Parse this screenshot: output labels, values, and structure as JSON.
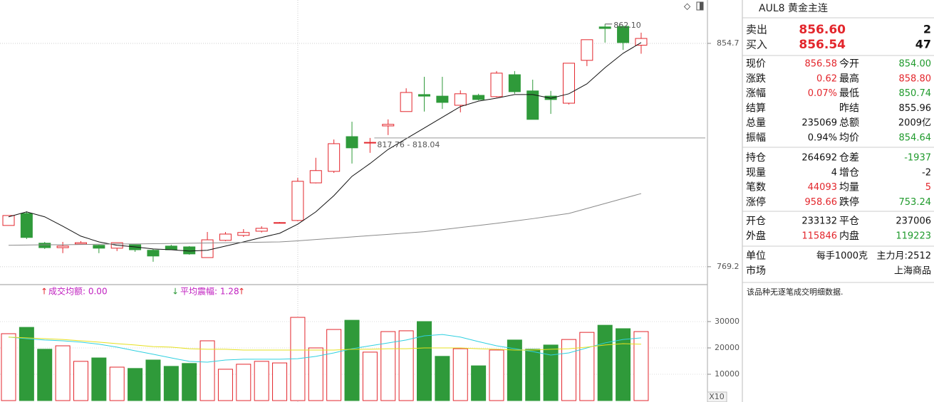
{
  "chart_data": [
    {
      "type": "candlestick",
      "open": [
        785.0,
        789.6,
        778.2,
        776.5,
        777.9,
        777.4,
        776.3,
        777.6,
        775.5,
        777.1,
        776.8,
        772.7,
        779.3,
        781.2,
        782.8,
        786.1,
        786.9,
        801.3,
        805.7,
        819.0,
        816.8,
        823.1,
        828.6,
        835.1,
        834.5,
        831.0,
        834.8,
        834.3,
        842.7,
        836.5,
        834.5,
        831.8,
        848.2,
        861.0,
        861.2,
        854.0
      ],
      "high": [
        788.8,
        790.4,
        778.7,
        778.7,
        779.0,
        777.6,
        778.4,
        777.6,
        776.0,
        777.6,
        777.1,
        782.5,
        782.5,
        783.6,
        784.7,
        786.3,
        803.2,
        810.9,
        817.9,
        824.7,
        818.5,
        825.6,
        837.5,
        841.9,
        841.9,
        836.7,
        835.4,
        844.1,
        844.1,
        840.8,
        836.5,
        847.1,
        856.1,
        862.1,
        861.2,
        858.8
      ],
      "low": [
        785.0,
        779.8,
        776.0,
        774.4,
        777.9,
        774.4,
        775.2,
        774.9,
        771.1,
        775.7,
        773.8,
        772.7,
        779.0,
        780.6,
        782.3,
        786.1,
        786.6,
        801.1,
        805.1,
        808.7,
        812.8,
        819.6,
        828.6,
        828.6,
        829.6,
        828.3,
        832.9,
        834.0,
        835.4,
        825.6,
        827.7,
        831.3,
        846.0,
        855.0,
        852.2,
        850.74
      ],
      "close": [
        788.8,
        780.4,
        776.5,
        777.1,
        778.4,
        776.3,
        778.4,
        775.7,
        773.3,
        775.7,
        774.1,
        779.5,
        781.7,
        782.3,
        783.9,
        786.1,
        801.9,
        806.0,
        816.3,
        814.7,
        816.8,
        823.7,
        835.9,
        834.5,
        832.1,
        835.4,
        833.2,
        843.3,
        836.2,
        825.6,
        833.2,
        847.1,
        856.1,
        860.4,
        855.0,
        856.58
      ],
      "lines": [
        {
          "color": "#111111",
          "values": [
            788.3,
            790.2,
            788.3,
            784.7,
            780.9,
            778.7,
            777.4,
            776.8,
            776.0,
            775.7,
            775.2,
            775.5,
            777.1,
            778.7,
            780.4,
            782.0,
            785.5,
            790.2,
            796.4,
            803.8,
            808.7,
            814.1,
            818.2,
            822.3,
            826.4,
            830.5,
            832.6,
            833.7,
            835.1,
            835.1,
            833.7,
            835.4,
            839.2,
            845.4,
            850.9,
            855.0
          ]
        },
        {
          "color": "#8a8a8a",
          "values": [
            777.4,
            777.5,
            777.6,
            777.6,
            777.7,
            777.8,
            777.9,
            777.9,
            778.0,
            778.1,
            778.2,
            778.3,
            778.4,
            778.5,
            778.6,
            778.7,
            779.1,
            779.6,
            780.1,
            780.6,
            781.1,
            781.6,
            782.1,
            782.6,
            783.4,
            784.2,
            785.0,
            785.8,
            786.7,
            787.6,
            788.6,
            789.6,
            791.5,
            793.4,
            795.3,
            797.2
          ]
        }
      ],
      "up_color": "#e3262c",
      "down_color": "#2f9a3a",
      "ylim": [
        762.9,
        871.3
      ],
      "yticks": [
        769.2,
        854.7
      ],
      "annotations": [
        "862.10",
        "817.76 - 818.04"
      ]
    },
    {
      "type": "bar",
      "values": [
        25400,
        27800,
        19500,
        20800,
        14900,
        16200,
        12700,
        12200,
        15400,
        13000,
        14100,
        22700,
        11900,
        13800,
        14900,
        14300,
        31600,
        20000,
        27000,
        30500,
        18400,
        26200,
        26500,
        30000,
        16800,
        19700,
        13200,
        19200,
        23000,
        19500,
        21100,
        23200,
        25900,
        28600,
        27300,
        26200
      ],
      "lines": [
        {
          "color": "#2fd0e0",
          "values": [
            24100,
            23500,
            23000,
            22700,
            22200,
            21400,
            20300,
            18900,
            17600,
            16200,
            14900,
            14600,
            15400,
            15700,
            15700,
            15700,
            15900,
            16800,
            18100,
            19700,
            20800,
            21900,
            23000,
            24600,
            25100,
            24100,
            22400,
            20800,
            19700,
            18600,
            17300,
            18100,
            20000,
            21900,
            23200,
            23800
          ]
        },
        {
          "color": "#e6e020",
          "values": [
            24100,
            23800,
            23500,
            23200,
            22700,
            22200,
            21600,
            21100,
            20500,
            20300,
            19700,
            19500,
            19500,
            19200,
            19200,
            19200,
            19200,
            19200,
            19200,
            19500,
            19500,
            19700,
            19700,
            20000,
            20000,
            20000,
            19700,
            19500,
            19200,
            19200,
            19500,
            19700,
            20300,
            21100,
            21600,
            21400
          ]
        }
      ],
      "ylim": [
        0,
        43500
      ],
      "yticks": [
        10000,
        20000,
        30000
      ],
      "indicators": [
        {
          "text": "↑",
          "color": "#e3262c"
        },
        {
          "text": "成交均额: 0.00",
          "color": "#c020c0"
        },
        {
          "text": "↓",
          "color": "#2f9a3a"
        },
        {
          "text": "平均震幅: 1.28",
          "color": "#c020c0"
        },
        {
          "text": "↑",
          "color": "#e3262c"
        }
      ],
      "scale_label": "X10"
    }
  ],
  "panel": {
    "title": "AUL8 黄金主连",
    "bid_ask": [
      {
        "label": "卖出",
        "price": "856.60",
        "qty": "2"
      },
      {
        "label": "买入",
        "price": "856.54",
        "qty": "47"
      }
    ],
    "groups": [
      [
        {
          "cells": [
            "现价",
            "856.58",
            "今开",
            "854.00"
          ],
          "colors": [
            "#111",
            "#e3262c",
            "#111",
            "#1f9a2c"
          ]
        },
        {
          "cells": [
            "涨跌",
            "0.62",
            "最高",
            "858.80"
          ],
          "colors": [
            "#111",
            "#e3262c",
            "#111",
            "#e3262c"
          ]
        },
        {
          "cells": [
            "涨幅",
            "0.07%",
            "最低",
            "850.74"
          ],
          "colors": [
            "#111",
            "#e3262c",
            "#111",
            "#1f9a2c"
          ]
        },
        {
          "cells": [
            "结算",
            null,
            "昨结",
            "855.96"
          ],
          "colors": [
            "#111",
            "#111",
            "#111",
            "#111"
          ]
        },
        {
          "cells": [
            "总量",
            "235069",
            "总额",
            "2009亿"
          ],
          "colors": [
            "#111",
            "#111",
            "#111",
            "#111"
          ]
        },
        {
          "cells": [
            "振幅",
            "0.94%",
            "均价",
            "854.64"
          ],
          "colors": [
            "#111",
            "#111",
            "#111",
            "#1f9a2c"
          ]
        }
      ],
      [
        {
          "cells": [
            "持仓",
            "264692",
            "仓差",
            "-1937"
          ],
          "colors": [
            "#111",
            "#111",
            "#111",
            "#1f9a2c"
          ]
        },
        {
          "cells": [
            "现量",
            "4",
            "增仓",
            "-2"
          ],
          "colors": [
            "#111",
            "#111",
            "#111",
            "#111"
          ]
        },
        {
          "cells": [
            "笔数",
            "44093",
            "均量",
            "5"
          ],
          "colors": [
            "#111",
            "#e3262c",
            "#111",
            "#e3262c"
          ]
        },
        {
          "cells": [
            "涨停",
            "958.66",
            "跌停",
            "753.24"
          ],
          "colors": [
            "#111",
            "#e3262c",
            "#111",
            "#1f9a2c"
          ]
        }
      ],
      [
        {
          "cells": [
            "开仓",
            "233132",
            "平仓",
            "237006"
          ],
          "colors": [
            "#111",
            "#111",
            "#111",
            "#111"
          ]
        },
        {
          "cells": [
            "外盘",
            "115846",
            "内盘",
            "119223"
          ],
          "colors": [
            "#111",
            "#e3262c",
            "#111",
            "#1f9a2c"
          ]
        }
      ],
      [
        {
          "cells": [
            "单位",
            "每手1000克",
            null,
            "主力月:2512"
          ],
          "colors": [
            "#111",
            "#111",
            "#111",
            "#111"
          ]
        },
        {
          "cells": [
            "市场",
            null,
            null,
            "上海商品"
          ],
          "colors": [
            "#111",
            "#111",
            "#111",
            "#111"
          ]
        }
      ]
    ],
    "note": "该品种无逐笔成交明细数据."
  }
}
